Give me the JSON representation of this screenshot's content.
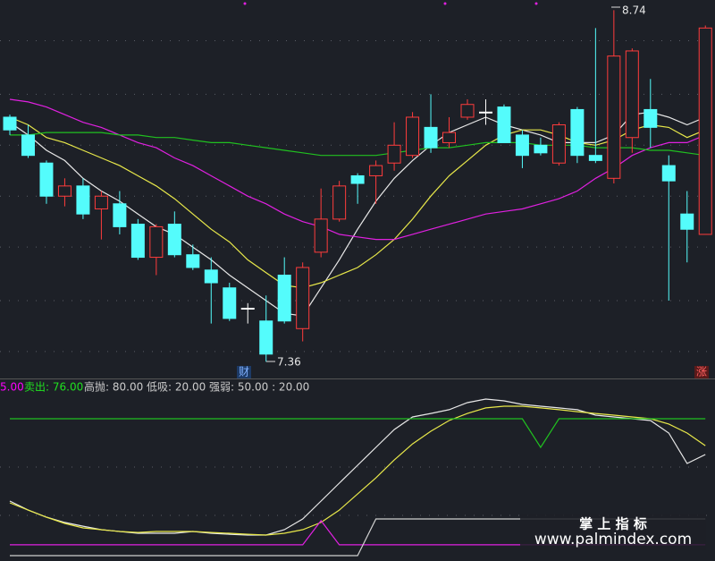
{
  "chart_data": [
    {
      "type": "candlestick",
      "ylim": [
        7.34,
        8.78
      ],
      "ygrid": [
        8.62,
        8.41,
        8.21,
        8.01,
        7.81,
        7.6,
        7.4
      ],
      "up_color": "#ff3c3c",
      "down_color": "#54fcfc",
      "flat_color": "#ffffff",
      "open": [
        8.32,
        8.25,
        8.14,
        8.01,
        8.05,
        7.96,
        7.98,
        7.9,
        7.77,
        7.9,
        7.78,
        7.72,
        7.65,
        7.57,
        7.52,
        7.7,
        7.49,
        7.79,
        7.92,
        8.09,
        8.09,
        8.14,
        8.17,
        8.28,
        8.22,
        8.32,
        8.34,
        8.36,
        8.25,
        8.21,
        8.14,
        8.35,
        8.17,
        8.08,
        8.24,
        8.35,
        8.13,
        7.94,
        7.86
      ],
      "high": [
        8.33,
        8.29,
        8.15,
        8.08,
        8.08,
        8.03,
        8.03,
        7.92,
        7.9,
        7.95,
        7.82,
        7.77,
        7.67,
        7.59,
        7.62,
        7.77,
        7.75,
        8.04,
        8.07,
        8.1,
        8.15,
        8.3,
        8.34,
        8.41,
        8.32,
        8.39,
        8.39,
        8.37,
        8.27,
        8.24,
        8.3,
        8.36,
        8.67,
        8.74,
        8.59,
        8.47,
        8.17,
        8.03,
        8.68
      ],
      "low": [
        8.25,
        8.16,
        7.98,
        7.97,
        7.92,
        7.84,
        7.86,
        7.76,
        7.7,
        7.77,
        7.72,
        7.51,
        7.52,
        7.51,
        7.36,
        7.51,
        7.44,
        7.77,
        7.91,
        7.98,
        7.98,
        8.11,
        8.16,
        8.18,
        8.2,
        8.31,
        8.29,
        8.22,
        8.12,
        8.17,
        8.13,
        8.14,
        8.14,
        8.06,
        8.18,
        8.2,
        7.6,
        7.75,
        7.86
      ],
      "close": [
        8.27,
        8.17,
        8.01,
        8.05,
        7.94,
        8.01,
        7.89,
        7.77,
        7.89,
        7.78,
        7.73,
        7.67,
        7.53,
        7.57,
        7.39,
        7.52,
        7.73,
        7.92,
        8.05,
        8.06,
        8.13,
        8.21,
        8.32,
        8.2,
        8.26,
        8.37,
        8.34,
        8.22,
        8.17,
        8.18,
        8.29,
        8.17,
        8.15,
        8.56,
        8.58,
        8.28,
        8.07,
        7.88,
        8.67
      ],
      "series": [
        {
          "color": "#e8e8e8",
          "values": [
            8.3,
            8.25,
            8.19,
            8.15,
            8.08,
            8.03,
            7.99,
            7.94,
            7.89,
            7.86,
            7.81,
            7.76,
            7.7,
            7.65,
            7.6,
            7.55,
            7.54,
            7.65,
            7.76,
            7.88,
            7.99,
            8.08,
            8.15,
            8.21,
            8.26,
            8.29,
            8.32,
            8.29,
            8.27,
            8.25,
            8.22,
            8.22,
            8.22,
            8.25,
            8.33,
            8.34,
            8.32,
            8.29,
            8.32
          ]
        },
        {
          "color": "#e8e84a",
          "values": [
            8.32,
            8.29,
            8.24,
            8.22,
            8.19,
            8.16,
            8.13,
            8.09,
            8.05,
            8.0,
            7.94,
            7.88,
            7.83,
            7.76,
            7.71,
            7.66,
            7.65,
            7.67,
            7.7,
            7.73,
            7.78,
            7.84,
            7.92,
            8.01,
            8.09,
            8.15,
            8.21,
            8.25,
            8.27,
            8.27,
            8.25,
            8.22,
            8.21,
            8.23,
            8.27,
            8.29,
            8.28,
            8.24,
            8.27
          ]
        },
        {
          "color": "#e020e0",
          "values": [
            8.39,
            8.38,
            8.36,
            8.33,
            8.3,
            8.28,
            8.25,
            8.22,
            8.2,
            8.16,
            8.13,
            8.09,
            8.05,
            8.01,
            7.98,
            7.94,
            7.91,
            7.89,
            7.86,
            7.85,
            7.84,
            7.84,
            7.86,
            7.88,
            7.9,
            7.92,
            7.94,
            7.95,
            7.96,
            7.98,
            8.0,
            8.03,
            8.08,
            8.12,
            8.17,
            8.2,
            8.22,
            8.22,
            8.25
          ]
        },
        {
          "color": "#20c020",
          "values": [
            8.25,
            8.25,
            8.26,
            8.26,
            8.26,
            8.26,
            8.25,
            8.25,
            8.24,
            8.24,
            8.23,
            8.22,
            8.22,
            8.21,
            8.2,
            8.19,
            8.18,
            8.17,
            8.17,
            8.17,
            8.17,
            8.18,
            8.19,
            8.2,
            8.2,
            8.21,
            8.22,
            8.22,
            8.22,
            8.21,
            8.21,
            8.21,
            8.2,
            8.2,
            8.2,
            8.19,
            8.19,
            8.18,
            8.17
          ]
        }
      ],
      "markers": [
        "财",
        "涨"
      ]
    },
    {
      "type": "line",
      "ylim": [
        -5,
        95
      ],
      "ygrid": [
        20,
        50
      ],
      "legend": [
        {
          "text": "5.00",
          "color": "#ff00ff"
        },
        {
          "text": "卖出: 76.00",
          "color": "#20e020"
        },
        {
          "text": "高抛: 80.00  低吸: 20.00  强弱: 50.00 : 20.00",
          "color": "#cccccc"
        }
      ],
      "series": [
        {
          "color": "#e8e8e8",
          "values": [
            28.9,
            23.3,
            18.9,
            15.6,
            13.3,
            11.1,
            10,
            8.9,
            8.9,
            8.9,
            10,
            8.9,
            8.3,
            7.8,
            7.8,
            11.1,
            17.8,
            28.9,
            40,
            51.1,
            62.2,
            73.3,
            81.1,
            83.3,
            85.6,
            90,
            92.2,
            91.1,
            88.9,
            87.8,
            86.7,
            85.6,
            82.2,
            81.1,
            80,
            78.9,
            71.1,
            52.2,
            57.8
          ]
        },
        {
          "color": "#e8e84a",
          "values": [
            27.8,
            23.3,
            18.9,
            15,
            12.2,
            11.1,
            10,
            9.4,
            10,
            10,
            10,
            9.4,
            8.9,
            8.3,
            7.8,
            8.9,
            11.1,
            15.6,
            23.3,
            33.3,
            43.3,
            54.4,
            64.4,
            72.2,
            78.9,
            83.3,
            86.7,
            87.8,
            87.8,
            86.7,
            85.6,
            84.4,
            83.3,
            82.2,
            81.1,
            80,
            76.7,
            71.1,
            63.3
          ]
        },
        {
          "color": "#20c020",
          "values": [
            80,
            80,
            80,
            80,
            80,
            80,
            80,
            80,
            80,
            80,
            80,
            80,
            80,
            80,
            80,
            80,
            80,
            80,
            80,
            80,
            80,
            80,
            80,
            80,
            80,
            80,
            80,
            80,
            80,
            62.2,
            80,
            80,
            80,
            80,
            80,
            80,
            80,
            80,
            80
          ]
        },
        {
          "color": "#e020e0",
          "values": [
            1.7,
            1.7,
            1.7,
            1.7,
            1.7,
            1.7,
            1.7,
            1.7,
            1.7,
            1.7,
            1.7,
            1.7,
            1.7,
            1.7,
            1.7,
            1.7,
            1.7,
            16.7,
            1.7,
            1.7,
            1.7,
            1.7,
            1.7,
            1.7,
            1.7,
            1.7,
            1.7,
            1.7,
            1.7,
            1.7,
            1.7,
            1.7,
            1.7,
            1.7,
            1.7,
            1.7,
            1.7,
            1.7,
            1.7
          ]
        },
        {
          "color": "#d0d0d0",
          "values": [
            -5,
            -5,
            -5,
            -5,
            -5,
            -5,
            -5,
            -5,
            -5,
            -5,
            -5,
            -5,
            -5,
            -5,
            -5,
            -5,
            -5,
            -5,
            -5,
            -5,
            17.8,
            17.8,
            17.8,
            17.8,
            17.8,
            17.8,
            17.8,
            17.8,
            17.8,
            17.8,
            17.8,
            17.8,
            17.8,
            17.8,
            17.8,
            17.8,
            17.8,
            17.8,
            17.8
          ]
        }
      ]
    }
  ],
  "watermark": {
    "title": "掌 上 指 标",
    "url": "www.palmindex.com"
  }
}
